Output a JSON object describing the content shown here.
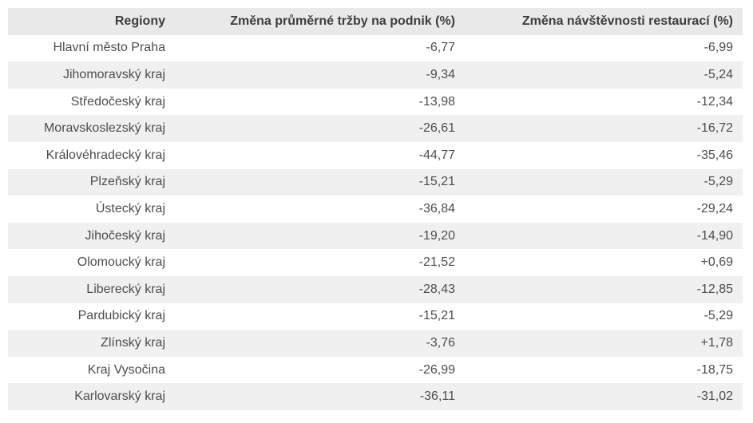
{
  "chart_data": {
    "type": "table",
    "title": "",
    "columns": [
      {
        "key": "region",
        "label": "Regiony"
      },
      {
        "key": "revenue_change",
        "label": "Změna průměrné tržby na podnik (%)"
      },
      {
        "key": "visits_change",
        "label": "Změna návštěvnosti restaurací (%)"
      }
    ],
    "rows": [
      {
        "region": "Hlavní město Praha",
        "revenue_change": "-6,77",
        "visits_change": "-6,99"
      },
      {
        "region": "Jihomoravský kraj",
        "revenue_change": "-9,34",
        "visits_change": "-5,24"
      },
      {
        "region": "Středočeský kraj",
        "revenue_change": "-13,98",
        "visits_change": "-12,34"
      },
      {
        "region": "Moravskoslezský kraj",
        "revenue_change": "-26,61",
        "visits_change": "-16,72"
      },
      {
        "region": "Královéhradecký kraj",
        "revenue_change": "-44,77",
        "visits_change": "-35,46"
      },
      {
        "region": "Plzeňský kraj",
        "revenue_change": "-15,21",
        "visits_change": "-5,29"
      },
      {
        "region": "Ústecký kraj",
        "revenue_change": "-36,84",
        "visits_change": "-29,24"
      },
      {
        "region": "Jihočeský kraj",
        "revenue_change": "-19,20",
        "visits_change": "-14,90"
      },
      {
        "region": "Olomoucký kraj",
        "revenue_change": "-21,52",
        "visits_change": "+0,69"
      },
      {
        "region": "Liberecký kraj",
        "revenue_change": "-28,43",
        "visits_change": "-12,85"
      },
      {
        "region": "Pardubický kraj",
        "revenue_change": "-15,21",
        "visits_change": "-5,29"
      },
      {
        "region": "Zlínský kraj",
        "revenue_change": "-3,76",
        "visits_change": "+1,78"
      },
      {
        "region": "Kraj Vysočina",
        "revenue_change": "-26,99",
        "visits_change": "-18,75"
      },
      {
        "region": "Karlovarský kraj",
        "revenue_change": "-36,11",
        "visits_change": "-31,02"
      }
    ]
  },
  "colors": {
    "header_bg": "#e9e9e9",
    "stripe_bg": "#f0f0f0",
    "header_text": "#3d3d3d",
    "body_text": "#4d4d4d",
    "row_bg": "#ffffff"
  }
}
